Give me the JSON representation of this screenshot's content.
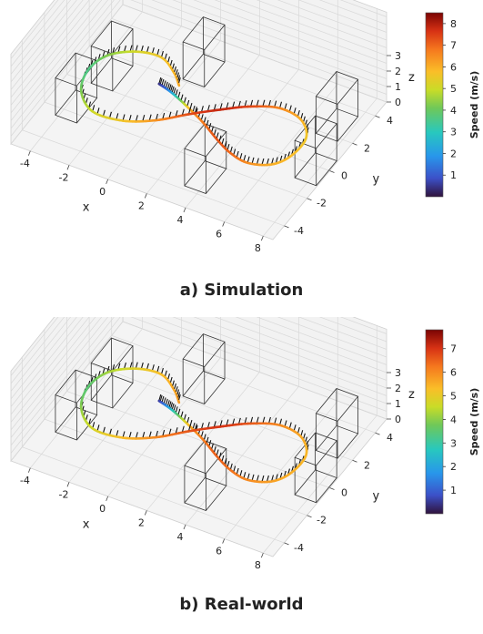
{
  "chart_data": [
    {
      "type": "line3d",
      "caption": "a) Simulation",
      "xlabel": "x",
      "ylabel": "y",
      "zlabel": "z",
      "x_ticks": [
        -4,
        -2,
        0,
        2,
        4,
        6,
        8
      ],
      "y_ticks": [
        -4,
        -2,
        0,
        2,
        4
      ],
      "z_ticks": [
        0,
        1,
        2,
        3
      ],
      "xlim": [
        -5,
        8.5
      ],
      "ylim": [
        -5,
        5
      ],
      "zlim": [
        0,
        3
      ],
      "colorbar": {
        "label": "Speed (m/s)",
        "ticks": [
          1,
          2,
          3,
          4,
          5,
          6,
          7,
          8
        ],
        "range": [
          0,
          8.5
        ],
        "colormap": "turbo"
      },
      "trajectory": {
        "description_free_params": true,
        "points": [
          {
            "x": -0.5,
            "y": 0.4,
            "z": 1.1,
            "speed": 0.4
          },
          {
            "x": 0.0,
            "y": 0.3,
            "z": 1.05,
            "speed": 1.5
          },
          {
            "x": 0.5,
            "y": 0.15,
            "z": 1.0,
            "speed": 3.0
          },
          {
            "x": 1.5,
            "y": -0.3,
            "z": 1.0,
            "speed": 6.0
          },
          {
            "x": 2.5,
            "y": -0.8,
            "z": 1.0,
            "speed": 6.8
          },
          {
            "x": 3.5,
            "y": -1.4,
            "z": 1.0,
            "speed": 7.2
          },
          {
            "x": 4.5,
            "y": -1.9,
            "z": 1.0,
            "speed": 7.0
          },
          {
            "x": 5.5,
            "y": -2.1,
            "z": 1.0,
            "speed": 6.5
          },
          {
            "x": 6.5,
            "y": -1.7,
            "z": 1.0,
            "speed": 6.0
          },
          {
            "x": 7.0,
            "y": -0.8,
            "z": 1.0,
            "speed": 5.8
          },
          {
            "x": 7.0,
            "y": 0.5,
            "z": 1.0,
            "speed": 5.6
          },
          {
            "x": 6.2,
            "y": 1.4,
            "z": 1.0,
            "speed": 6.0
          },
          {
            "x": 5.0,
            "y": 1.6,
            "z": 1.0,
            "speed": 6.6
          },
          {
            "x": 3.8,
            "y": 1.1,
            "z": 1.0,
            "speed": 7.4
          },
          {
            "x": 2.7,
            "y": 0.3,
            "z": 1.0,
            "speed": 7.8
          },
          {
            "x": 1.6,
            "y": -0.6,
            "z": 1.0,
            "speed": 7.3
          },
          {
            "x": 0.5,
            "y": -1.6,
            "z": 1.0,
            "speed": 6.4
          },
          {
            "x": -0.8,
            "y": -2.3,
            "z": 1.0,
            "speed": 5.6
          },
          {
            "x": -2.3,
            "y": -2.4,
            "z": 1.0,
            "speed": 5.0
          },
          {
            "x": -3.4,
            "y": -1.5,
            "z": 1.0,
            "speed": 4.2
          },
          {
            "x": -3.8,
            "y": -0.2,
            "z": 1.0,
            "speed": 3.6
          },
          {
            "x": -3.5,
            "y": 1.0,
            "z": 1.0,
            "speed": 4.3
          },
          {
            "x": -2.5,
            "y": 1.8,
            "z": 1.0,
            "speed": 5.1
          },
          {
            "x": -1.3,
            "y": 2.0,
            "z": 1.0,
            "speed": 5.6
          },
          {
            "x": -0.3,
            "y": 1.4,
            "z": 1.0,
            "speed": 5.9
          },
          {
            "x": 0.3,
            "y": 0.8,
            "z": 1.0,
            "speed": 6.1
          }
        ]
      },
      "gates": [
        {
          "x": -3.2,
          "y": 0.9
        },
        {
          "x": 0.3,
          "y": 3.0
        },
        {
          "x": 7.3,
          "y": 2.7
        },
        {
          "x": 7.9,
          "y": -0.2
        },
        {
          "x": 3.8,
          "y": -2.9
        },
        {
          "x": -3.6,
          "y": -1.6
        }
      ]
    },
    {
      "type": "line3d",
      "caption": "b) Real-world",
      "xlabel": "x",
      "ylabel": "y",
      "zlabel": "z",
      "x_ticks": [
        -4,
        -2,
        0,
        2,
        4,
        6,
        8
      ],
      "y_ticks": [
        -4,
        -2,
        0,
        2,
        4
      ],
      "z_ticks": [
        0,
        1,
        2,
        3
      ],
      "xlim": [
        -5,
        8.5
      ],
      "ylim": [
        -5,
        5
      ],
      "zlim": [
        0,
        3
      ],
      "colorbar": {
        "label": "Speed (m/s)",
        "ticks": [
          1,
          2,
          3,
          4,
          5,
          6,
          7
        ],
        "range": [
          0,
          7.8
        ],
        "colormap": "turbo"
      },
      "trajectory": {
        "points": [
          {
            "x": -0.5,
            "y": 0.4,
            "z": 1.1,
            "speed": 0.5
          },
          {
            "x": 0.0,
            "y": 0.3,
            "z": 1.05,
            "speed": 1.8
          },
          {
            "x": 0.5,
            "y": 0.15,
            "z": 1.0,
            "speed": 3.2
          },
          {
            "x": 1.5,
            "y": -0.3,
            "z": 1.0,
            "speed": 5.5
          },
          {
            "x": 2.5,
            "y": -0.8,
            "z": 1.0,
            "speed": 6.2
          },
          {
            "x": 3.5,
            "y": -1.4,
            "z": 1.0,
            "speed": 6.5
          },
          {
            "x": 4.5,
            "y": -1.9,
            "z": 1.0,
            "speed": 6.3
          },
          {
            "x": 5.5,
            "y": -2.1,
            "z": 1.0,
            "speed": 6.0
          },
          {
            "x": 6.5,
            "y": -1.7,
            "z": 1.0,
            "speed": 5.7
          },
          {
            "x": 7.0,
            "y": -0.8,
            "z": 1.0,
            "speed": 5.5
          },
          {
            "x": 7.0,
            "y": 0.5,
            "z": 1.0,
            "speed": 5.4
          },
          {
            "x": 6.2,
            "y": 1.4,
            "z": 1.0,
            "speed": 5.6
          },
          {
            "x": 5.0,
            "y": 1.6,
            "z": 1.0,
            "speed": 6.0
          },
          {
            "x": 3.8,
            "y": 1.1,
            "z": 1.0,
            "speed": 6.6
          },
          {
            "x": 2.7,
            "y": 0.3,
            "z": 1.0,
            "speed": 7.0
          },
          {
            "x": 1.6,
            "y": -0.6,
            "z": 1.0,
            "speed": 6.6
          },
          {
            "x": 0.5,
            "y": -1.6,
            "z": 1.0,
            "speed": 6.0
          },
          {
            "x": -0.8,
            "y": -2.3,
            "z": 1.0,
            "speed": 5.3
          },
          {
            "x": -2.3,
            "y": -2.4,
            "z": 1.0,
            "speed": 4.7
          },
          {
            "x": -3.4,
            "y": -1.5,
            "z": 1.0,
            "speed": 4.0
          },
          {
            "x": -3.8,
            "y": -0.2,
            "z": 1.0,
            "speed": 3.5
          },
          {
            "x": -3.5,
            "y": 1.0,
            "z": 1.0,
            "speed": 4.2
          },
          {
            "x": -2.5,
            "y": 1.8,
            "z": 1.0,
            "speed": 4.9
          },
          {
            "x": -1.3,
            "y": 2.0,
            "z": 1.0,
            "speed": 5.3
          },
          {
            "x": -0.3,
            "y": 1.4,
            "z": 1.0,
            "speed": 5.6
          },
          {
            "x": 0.3,
            "y": 0.8,
            "z": 1.0,
            "speed": 5.8
          }
        ]
      },
      "gates": [
        {
          "x": -3.2,
          "y": 0.9
        },
        {
          "x": 0.3,
          "y": 3.0
        },
        {
          "x": 7.3,
          "y": 2.7
        },
        {
          "x": 7.9,
          "y": -0.2
        },
        {
          "x": 3.8,
          "y": -2.9
        },
        {
          "x": -3.6,
          "y": -1.6
        }
      ]
    }
  ]
}
